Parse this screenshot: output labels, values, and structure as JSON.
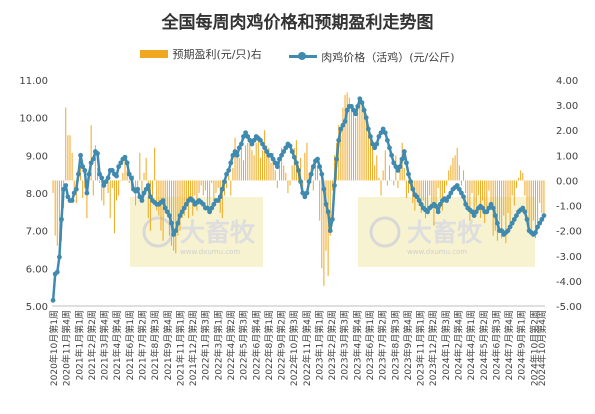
{
  "chart_data": {
    "type": "bar+line",
    "title": "全国每周肉鸡价格和预期盈利走势图",
    "series": [
      {
        "name": "预期盈利(元/只)右",
        "type": "bar",
        "axis": "right",
        "color": "#f0a820"
      },
      {
        "name": "肉鸡价格（活鸡）(元/公斤)",
        "type": "line",
        "axis": "left",
        "color": "#3f8aae"
      }
    ],
    "y_left": {
      "min": 5.0,
      "max": 11.0,
      "ticks": [
        "5.00",
        "6.00",
        "7.00",
        "8.00",
        "9.00",
        "10.00",
        "11.00"
      ]
    },
    "y_right": {
      "min": -5.0,
      "max": 4.0,
      "ticks": [
        "-5.00",
        "-4.00",
        "-3.00",
        "-2.00",
        "-1.00",
        "0.00",
        "1.00",
        "2.00",
        "3.00",
        "4.00"
      ]
    },
    "x_labels": [
      "2020年10月第1周",
      "2020年11月第4周",
      "2021年1月第1周",
      "2021年2月第2周",
      "2021年3月第4周",
      "2021年4月第4周",
      "2021年6月第1周",
      "2021年7月第2周",
      "2021年8月第3周",
      "2021年9月第4周",
      "2021年11月第1周",
      "2021年12月第2周",
      "2022年1月第3周",
      "2022年3月第1周",
      "2022年4月第2周",
      "2022年5月第3周",
      "2022年6月第4周",
      "2022年8月第1周",
      "2022年9月第2周",
      "2022年10月第3周",
      "2022年11月第4周",
      "2023年1月第1周",
      "2023年2月第2周",
      "2023年3月第3周",
      "2023年4月第4周",
      "2023年6月第1周",
      "2023年7月第2周",
      "2023年8月第3周",
      "2023年9月第4周",
      "2023年11月第1周",
      "2023年12月第2周",
      "2024年1月第3周",
      "2024年2月第4周",
      "2024年4月第1周",
      "2024年5月第2周",
      "2024年6月第3周",
      "2024年7月第4周",
      "2024年9月第1周",
      "2024年10月第2周"
    ],
    "x_label_last": "2024年10月第4周",
    "price": [
      5.15,
      5.85,
      5.9,
      6.3,
      7.3,
      8.1,
      8.2,
      7.9,
      7.8,
      7.8,
      8.0,
      8.1,
      8.5,
      9.0,
      8.7,
      8.6,
      8.0,
      8.5,
      8.8,
      8.9,
      9.1,
      9.05,
      8.5,
      8.4,
      8.2,
      8.3,
      8.4,
      8.6,
      8.6,
      8.5,
      8.45,
      8.7,
      8.8,
      8.9,
      8.95,
      8.8,
      8.5,
      8.4,
      8.1,
      8.05,
      8.1,
      7.9,
      7.8,
      8.0,
      8.1,
      8.2,
      7.9,
      7.8,
      7.75,
      7.7,
      7.7,
      7.75,
      7.8,
      7.6,
      7.5,
      7.4,
      7.2,
      6.9,
      7.0,
      7.2,
      7.4,
      7.5,
      7.6,
      7.7,
      7.8,
      7.85,
      7.8,
      7.7,
      7.75,
      7.8,
      7.75,
      7.7,
      7.6,
      7.6,
      7.5,
      7.6,
      7.7,
      7.8,
      7.8,
      7.9,
      8.1,
      8.3,
      8.5,
      8.6,
      8.8,
      9.0,
      9.1,
      9.0,
      9.2,
      9.3,
      9.5,
      9.6,
      9.5,
      9.4,
      9.3,
      9.4,
      9.5,
      9.45,
      9.4,
      9.3,
      9.2,
      9.1,
      9.0,
      9.0,
      8.9,
      8.8,
      8.7,
      8.9,
      9.0,
      9.1,
      9.2,
      9.3,
      9.25,
      9.1,
      8.95,
      8.8,
      8.6,
      8.3,
      8.0,
      7.9,
      8.0,
      8.3,
      8.5,
      8.7,
      8.85,
      8.9,
      8.7,
      8.5,
      8.1,
      7.7,
      7.5,
      7.0,
      7.3,
      8.2,
      8.9,
      9.4,
      9.7,
      9.8,
      9.9,
      10.2,
      10.3,
      10.3,
      10.2,
      10.1,
      10.3,
      10.5,
      10.4,
      10.2,
      10.0,
      9.7,
      9.5,
      9.3,
      9.2,
      9.3,
      9.5,
      9.6,
      9.7,
      9.6,
      9.4,
      9.2,
      9.0,
      8.8,
      8.7,
      8.6,
      8.7,
      8.9,
      9.1,
      8.8,
      8.5,
      8.3,
      8.1,
      7.95,
      7.9,
      7.8,
      7.7,
      7.6,
      7.55,
      7.5,
      7.6,
      7.65,
      7.7,
      7.65,
      7.5,
      7.7,
      7.8,
      7.85,
      7.8,
      7.9,
      8.0,
      8.1,
      8.15,
      8.2,
      8.1,
      8.0,
      7.9,
      7.7,
      7.6,
      7.55,
      7.5,
      7.4,
      7.5,
      7.6,
      7.65,
      7.6,
      7.5,
      7.5,
      7.6,
      7.7,
      7.6,
      7.4,
      7.2,
      7.0,
      7.0,
      6.9,
      6.95,
      7.0,
      7.1,
      7.2,
      7.3,
      7.4,
      7.5,
      7.55,
      7.6,
      7.5,
      7.3,
      7.0,
      6.95,
      6.9,
      6.95,
      7.1,
      7.2,
      7.3,
      7.4
    ],
    "profit": [
      -0.5,
      -2.2,
      -2.6,
      -2.6,
      -2.4,
      -1.1,
      2.9,
      1.8,
      1.8,
      1.1,
      -0.4,
      -0.9,
      0.2,
      0.6,
      -0.7,
      -0.3,
      -1.5,
      0.4,
      2.2,
      -0.6,
      1.4,
      0.5,
      -0.1,
      -0.8,
      -1.0,
      -0.1,
      -0.5,
      -1.5,
      -0.3,
      -2.1,
      -0.8,
      -0.6,
      0.0,
      0.3,
      0.8,
      0.4,
      -0.1,
      -0.3,
      0.2,
      -1.0,
      -0.5,
      1.1,
      -0.7,
      0.3,
      0.9,
      -1.5,
      -2.0,
      -0.7,
      1.3,
      -1.2,
      -1.4,
      -2.0,
      -2.4,
      -1.3,
      -1.1,
      -2.2,
      -2.6,
      -2.8,
      -2.9,
      -2.2,
      -2.0,
      -1.5,
      -1.4,
      -0.9,
      -1.5,
      -0.8,
      -1.4,
      -0.6,
      -1.2,
      -0.5,
      -0.2,
      -0.6,
      -0.4,
      -1.2,
      -1.0,
      -0.1,
      -0.8,
      -0.5,
      -0.3,
      -1.3,
      -1.5,
      -0.6,
      -0.3,
      0.2,
      -0.6,
      0.5,
      1.7,
      1.0,
      0.9,
      1.3,
      0.8,
      1.4,
      1.5,
      1.6,
      1.2,
      1.0,
      1.5,
      1.8,
      0.9,
      1.2,
      2.0,
      1.4,
      1.3,
      0.7,
      1.1,
      0.4,
      -0.3,
      0.9,
      1.3,
      0.6,
      0.3,
      -0.5,
      -0.2,
      0.6,
      1.3,
      1.6,
      0.6,
      0.9,
      -0.5,
      1.1,
      1.5,
      0.3,
      0.5,
      -0.4,
      0.9,
      0.6,
      -1.6,
      -3.5,
      -4.2,
      -2.8,
      -3.8,
      -2.2,
      -0.4,
      1.0,
      1.5,
      2.2,
      1.8,
      2.9,
      3.4,
      3.5,
      3.3,
      3.0,
      2.8,
      2.5,
      3.0,
      3.2,
      3.0,
      2.7,
      2.4,
      2.0,
      1.7,
      1.4,
      0.6,
      1.0,
      0.1,
      -0.6,
      0.4,
      1.2,
      -0.2,
      0.6,
      0.0,
      -0.2,
      1.0,
      -0.3,
      0.9,
      1.5,
      0.5,
      -0.7,
      -0.5,
      -0.3,
      -0.9,
      -1.2,
      -0.7,
      -1.0,
      -1.3,
      -0.8,
      -1.5,
      -1.1,
      -0.6,
      -0.9,
      -1.8,
      -1.0,
      -0.3,
      -0.7,
      -1.2,
      -0.5,
      -0.2,
      0.4,
      0.6,
      0.9,
      1.0,
      1.3,
      0.6,
      -0.2,
      0.4,
      -0.5,
      -1.1,
      -1.6,
      -0.5,
      -1.3,
      -1.0,
      -0.6,
      -1.5,
      -0.8,
      -1.7,
      -1.2,
      -0.4,
      -1.1,
      -2.2,
      -2.0,
      -2.4,
      -1.6,
      -2.3,
      -1.4,
      -2.5,
      -1.3,
      -1.8,
      -0.6,
      -1.0,
      -0.3,
      0.1,
      0.4,
      0.3,
      -0.6,
      -1.2,
      -1.8,
      -2.1,
      -1.6,
      -2.3,
      -1.7,
      -0.9,
      -1.3,
      -1.5
    ]
  },
  "watermark": {
    "brand": "大畜牧",
    "url": "www.dxumu.com"
  }
}
